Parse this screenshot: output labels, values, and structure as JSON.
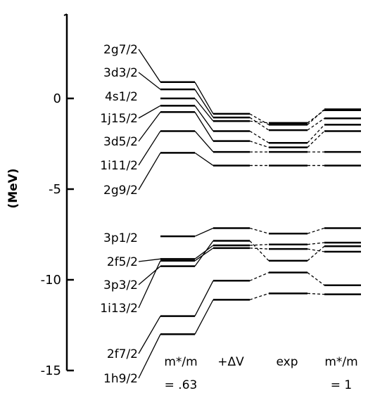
{
  "axis": {
    "ylabel": "(MeV)",
    "ylim": [
      -15,
      5
    ],
    "ticks": [
      {
        "value": 0,
        "label": "0"
      },
      {
        "value": -5,
        "label": "-5"
      },
      {
        "value": -10,
        "label": "-10"
      },
      {
        "value": -15,
        "label": "-15"
      }
    ]
  },
  "columns": [
    {
      "line1": "m*/m",
      "line2": "= .63"
    },
    {
      "line1": "+ΔV",
      "line2": ""
    },
    {
      "line1": "exp",
      "line2": ""
    },
    {
      "line1": "m*/m",
      "line2": "= 1"
    }
  ],
  "levels": [
    {
      "name": "2g7/2",
      "energies": [
        0.9,
        -0.85,
        -1.45,
        -0.6
      ]
    },
    {
      "name": "3d3/2",
      "energies": [
        0.5,
        -1.05,
        -1.75,
        -1.1
      ]
    },
    {
      "name": "4s1/2",
      "energies": [
        0.0,
        -1.25,
        -1.35,
        -0.65
      ]
    },
    {
      "name": "1j15/2",
      "energies": [
        -0.4,
        -1.8,
        -2.45,
        -1.45
      ]
    },
    {
      "name": "3d5/2",
      "energies": [
        -0.75,
        -2.35,
        -2.7,
        -1.8
      ]
    },
    {
      "name": "1i11/2",
      "energies": [
        -1.8,
        -2.95,
        -2.95,
        -2.95
      ]
    },
    {
      "name": "2g9/2",
      "energies": [
        -3.0,
        -3.7,
        -3.7,
        -3.7
      ]
    },
    {
      "name": "3p1/2",
      "energies": [
        -7.6,
        -7.15,
        -7.45,
        -7.15
      ]
    },
    {
      "name": "2f5/2",
      "energies": [
        -8.85,
        -8.1,
        -8.05,
        -7.95
      ]
    },
    {
      "name": "3p3/2",
      "energies": [
        -9.25,
        -7.85,
        -8.95,
        -8.15
      ]
    },
    {
      "name": "1i13/2",
      "energies": [
        -8.95,
        -8.25,
        -8.3,
        -8.45
      ]
    },
    {
      "name": "2f7/2",
      "energies": [
        -12.0,
        -10.05,
        -9.6,
        -10.3
      ]
    },
    {
      "name": "1h9/2",
      "energies": [
        -13.0,
        -11.1,
        -10.75,
        -10.8
      ]
    }
  ]
}
